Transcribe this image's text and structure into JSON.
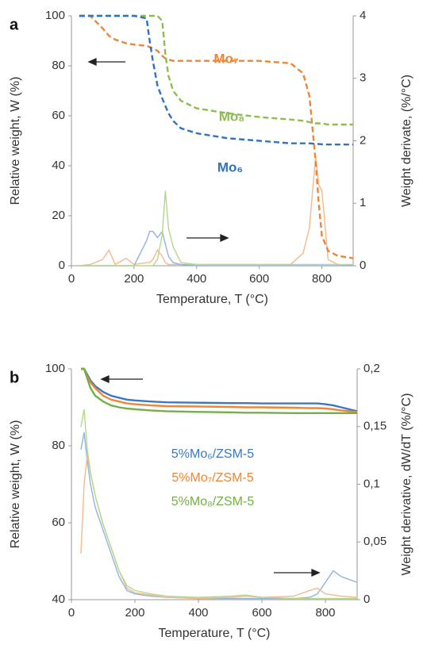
{
  "chart_data": [
    {
      "type": "line",
      "label": "a",
      "x_label": "Temperature, T (°C)",
      "y_label": "Relative weight, W (%)",
      "y2_label": "Weight derivate, (%/°C)",
      "xlim": [
        0,
        900
      ],
      "xticks": [
        0,
        200,
        400,
        600,
        800
      ],
      "ylim": [
        0,
        100
      ],
      "yticks": [
        0,
        20,
        40,
        60,
        80,
        100
      ],
      "y2lim": [
        0,
        4
      ],
      "y2ticks": [
        0,
        1,
        2,
        3,
        4
      ],
      "x": [
        25,
        60,
        100,
        120,
        140,
        175,
        200,
        240,
        250,
        260,
        275,
        290,
        300,
        310,
        325,
        350,
        400,
        500,
        600,
        700,
        740,
        760,
        780,
        790,
        800,
        820,
        850,
        900
      ],
      "series": [
        {
          "name": "Mo₇",
          "color": "#ef8536",
          "line_style": "dashed",
          "values": [
            100,
            100,
            95,
            92,
            90.5,
            89,
            88.5,
            88,
            87.5,
            87,
            86,
            84,
            83,
            82.5,
            82,
            82,
            82,
            82,
            82,
            81,
            77,
            68,
            42,
            25,
            12,
            6,
            4,
            3
          ]
        },
        {
          "name": "Mo₈",
          "color": "#8cbd4f",
          "line_style": "dashed",
          "values": [
            100,
            100,
            100,
            100,
            100,
            100,
            100,
            100,
            100,
            100,
            100,
            98,
            85,
            76,
            70,
            66,
            63,
            61,
            59.5,
            58.5,
            58,
            57.5,
            57,
            57,
            57,
            56.5,
            56.5,
            56.5
          ]
        },
        {
          "name": "Mo₆",
          "color": "#2f72c4",
          "line_style": "dashed",
          "values": [
            100,
            100,
            100,
            100,
            100,
            100,
            100,
            99,
            90,
            82,
            72,
            67,
            64,
            61,
            58,
            55,
            53,
            51,
            50,
            49,
            49,
            49,
            48.8,
            48.7,
            48.6,
            48.5,
            48.5,
            48.5
          ]
        },
        {
          "color": "#f7b88a",
          "axis": "y2",
          "values": [
            0,
            0.02,
            0.1,
            0.25,
            0.02,
            0.12,
            0.02,
            0.05,
            0.05,
            0.1,
            0.25,
            0.15,
            0.05,
            0.02,
            0.02,
            0.02,
            0.02,
            0.02,
            0.02,
            0.02,
            0.2,
            0.6,
            1.75,
            1.3,
            1.2,
            0.1,
            0.02,
            0
          ]
        },
        {
          "color": "#8fb4e2",
          "axis": "y2",
          "values": [
            0,
            0,
            0,
            0,
            0,
            0,
            0,
            0.4,
            0.55,
            0.55,
            0.45,
            0.55,
            0.35,
            0.15,
            0.05,
            0.02,
            0,
            0,
            0,
            0,
            0,
            0,
            0,
            0,
            0,
            0,
            0,
            0
          ]
        },
        {
          "color": "#b3d88a",
          "axis": "y2",
          "values": [
            0,
            0,
            0,
            0,
            0,
            0,
            0,
            0,
            0,
            0,
            0.1,
            0.5,
            1.2,
            0.6,
            0.3,
            0.05,
            0.02,
            0.02,
            0.02,
            0.02,
            0.02,
            0.02,
            0.02,
            0.02,
            0.02,
            0.02,
            0.02,
            0.02
          ]
        }
      ]
    },
    {
      "type": "line",
      "label": "b",
      "x_label": "Temperature, T (°C)",
      "y_label": "Relative weight, W (%)",
      "y2_label": "Weight derivative, dW/dT (%/°C)",
      "xlim": [
        0,
        900
      ],
      "xticks": [
        0,
        200,
        400,
        600,
        800
      ],
      "ylim": [
        40,
        100
      ],
      "yticks": [
        40,
        60,
        80,
        100
      ],
      "y2lim": [
        0,
        0.2
      ],
      "y2ticks": [
        0,
        {
          "value": 0.05,
          "label": "0,05"
        },
        {
          "value": 0.1,
          "label": "0,1"
        },
        {
          "value": 0.15,
          "label": "0,15"
        },
        {
          "value": 0.2,
          "label": "0,2"
        }
      ],
      "x": [
        30,
        40,
        50,
        60,
        75,
        100,
        125,
        150,
        175,
        200,
        250,
        300,
        400,
        500,
        550,
        600,
        700,
        750,
        775,
        800,
        825,
        850,
        900
      ],
      "series": [
        {
          "name": "5%Mo₆/ZSM-5",
          "color": "#3b78c3",
          "line_style": "solid",
          "values": [
            100,
            100,
            98.5,
            97,
            95.5,
            94,
            93,
            92.5,
            92,
            91.8,
            91.5,
            91.3,
            91.2,
            91.1,
            91.1,
            91,
            91,
            91,
            91,
            90.8,
            90.5,
            90,
            89
          ]
        },
        {
          "name": "5%Mo₇/ZSM-5",
          "color": "#ef8536",
          "line_style": "solid",
          "values": [
            100,
            100,
            98,
            96.5,
            95,
            93,
            92,
            91.5,
            91,
            90.8,
            90.5,
            90.3,
            90.2,
            90.1,
            90,
            90,
            89.9,
            89.8,
            89.8,
            89.7,
            89.5,
            89.2,
            88.8
          ]
        },
        {
          "name": "5%Mo₈/ZSM-5",
          "color": "#74b045",
          "line_style": "solid",
          "values": [
            100,
            100,
            97.5,
            95,
            93,
            91.5,
            90.5,
            90,
            89.7,
            89.5,
            89.2,
            89,
            88.8,
            88.7,
            88.6,
            88.6,
            88.5,
            88.5,
            88.5,
            88.5,
            88.5,
            88.5,
            88.5
          ]
        },
        {
          "color": "#8fb4e2",
          "axis": "y2",
          "values": [
            0.13,
            0.145,
            0.12,
            0.1,
            0.08,
            0.06,
            0.04,
            0.02,
            0.008,
            0.005,
            0.003,
            0.002,
            0.001,
            0.001,
            0.001,
            0.001,
            0.001,
            0.002,
            0.005,
            0.015,
            0.025,
            0.02,
            0.015
          ]
        },
        {
          "color": "#f7b88a",
          "axis": "y2",
          "values": [
            0.04,
            0.1,
            0.125,
            0.11,
            0.09,
            0.065,
            0.045,
            0.025,
            0.01,
            0.006,
            0.004,
            0.002,
            0.001,
            0.002,
            0.003,
            0.002,
            0.003,
            0.008,
            0.01,
            0.005,
            0.004,
            0.003,
            0.002
          ]
        },
        {
          "color": "#b3d88a",
          "axis": "y2",
          "values": [
            0.15,
            0.165,
            0.13,
            0.11,
            0.09,
            0.065,
            0.045,
            0.025,
            0.012,
            0.008,
            0.005,
            0.003,
            0.002,
            0.003,
            0.004,
            0.002,
            0.001,
            0.001,
            0.001,
            0.001,
            0.001,
            0.001,
            0.001
          ]
        }
      ]
    }
  ]
}
